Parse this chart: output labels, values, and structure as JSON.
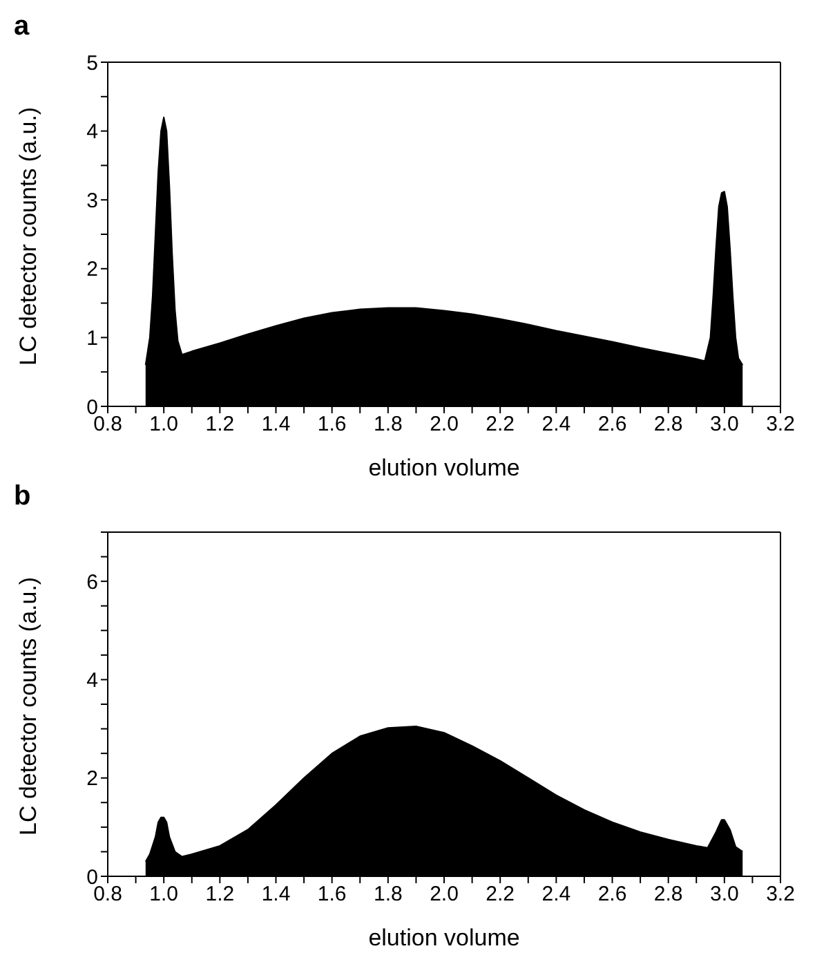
{
  "chart_data": [
    {
      "type": "area",
      "title": "a",
      "xlabel": "elution volume",
      "ylabel": "LC detector counts (a.u.)",
      "xlim": [
        0.8,
        3.2
      ],
      "ylim": [
        0,
        5
      ],
      "xticks": [
        {
          "value": 0.8,
          "label": "0.8"
        },
        {
          "value": 0.9,
          "label": null
        },
        {
          "value": 1,
          "label": "1.0"
        },
        {
          "value": 1.1,
          "label": null
        },
        {
          "value": 1.2,
          "label": "1.2"
        },
        {
          "value": 1.3,
          "label": null
        },
        {
          "value": 1.4,
          "label": "1.4"
        },
        {
          "value": 1.5,
          "label": null
        },
        {
          "value": 1.6,
          "label": "1.6"
        },
        {
          "value": 1.7,
          "label": null
        },
        {
          "value": 1.8,
          "label": "1.8"
        },
        {
          "value": 1.9,
          "label": null
        },
        {
          "value": 2,
          "label": "2.0"
        },
        {
          "value": 2.1,
          "label": null
        },
        {
          "value": 2.2,
          "label": "2.2"
        },
        {
          "value": 2.3,
          "label": null
        },
        {
          "value": 2.4,
          "label": "2.4"
        },
        {
          "value": 2.5,
          "label": null
        },
        {
          "value": 2.6,
          "label": "2.6"
        },
        {
          "value": 2.7,
          "label": null
        },
        {
          "value": 2.8,
          "label": "2.8"
        },
        {
          "value": 2.9,
          "label": null
        },
        {
          "value": 3,
          "label": "3.0"
        },
        {
          "value": 3.1,
          "label": null
        },
        {
          "value": 3.2,
          "label": "3.2"
        }
      ],
      "yticks": [
        0,
        {
          "value": 0.5,
          "label": null
        },
        1,
        {
          "value": 1.5,
          "label": null
        },
        2,
        {
          "value": 2.5,
          "label": null
        },
        3,
        {
          "value": 3.5,
          "label": null
        },
        4,
        {
          "value": 4.5,
          "label": null
        },
        5
      ],
      "grid": false,
      "legend": false,
      "series": [
        {
          "color": "#000000",
          "x": [
            0.935,
            0.95,
            0.96,
            0.97,
            0.98,
            0.99,
            1.0,
            1.01,
            1.02,
            1.03,
            1.04,
            1.05,
            1.065,
            1.1,
            1.2,
            1.3,
            1.4,
            1.5,
            1.6,
            1.7,
            1.8,
            1.9,
            2.0,
            2.1,
            2.2,
            2.3,
            2.4,
            2.5,
            2.6,
            2.7,
            2.8,
            2.9,
            2.93,
            2.95,
            2.96,
            2.97,
            2.98,
            2.99,
            3.0,
            3.01,
            3.02,
            3.03,
            3.04,
            3.05,
            3.065
          ],
          "values": [
            0.6,
            1.0,
            1.6,
            2.5,
            3.4,
            4.0,
            4.2,
            4.0,
            3.2,
            2.2,
            1.4,
            0.95,
            0.75,
            0.8,
            0.92,
            1.05,
            1.17,
            1.28,
            1.36,
            1.41,
            1.43,
            1.43,
            1.39,
            1.34,
            1.27,
            1.19,
            1.1,
            1.02,
            0.94,
            0.85,
            0.77,
            0.69,
            0.66,
            1.0,
            1.6,
            2.3,
            2.9,
            3.1,
            3.12,
            2.9,
            2.3,
            1.6,
            1.0,
            0.7,
            0.6
          ]
        }
      ]
    },
    {
      "type": "area",
      "title": "b",
      "xlabel": "elution volume",
      "ylabel": "LC detector counts (a.u.)",
      "xlim": [
        0.8,
        3.2
      ],
      "ylim": [
        0,
        7
      ],
      "xticks": [
        {
          "value": 0.8,
          "label": "0.8"
        },
        {
          "value": 0.9,
          "label": null
        },
        {
          "value": 1,
          "label": "1.0"
        },
        {
          "value": 1.1,
          "label": null
        },
        {
          "value": 1.2,
          "label": "1.2"
        },
        {
          "value": 1.3,
          "label": null
        },
        {
          "value": 1.4,
          "label": "1.4"
        },
        {
          "value": 1.5,
          "label": null
        },
        {
          "value": 1.6,
          "label": "1.6"
        },
        {
          "value": 1.7,
          "label": null
        },
        {
          "value": 1.8,
          "label": "1.8"
        },
        {
          "value": 1.9,
          "label": null
        },
        {
          "value": 2,
          "label": "2.0"
        },
        {
          "value": 2.1,
          "label": null
        },
        {
          "value": 2.2,
          "label": "2.2"
        },
        {
          "value": 2.3,
          "label": null
        },
        {
          "value": 2.4,
          "label": "2.4"
        },
        {
          "value": 2.5,
          "label": null
        },
        {
          "value": 2.6,
          "label": "2.6"
        },
        {
          "value": 2.7,
          "label": null
        },
        {
          "value": 2.8,
          "label": "2.8"
        },
        {
          "value": 2.9,
          "label": null
        },
        {
          "value": 3,
          "label": "3.0"
        },
        {
          "value": 3.1,
          "label": null
        },
        {
          "value": 3.2,
          "label": "3.2"
        }
      ],
      "yticks": [
        0,
        {
          "value": 0.5,
          "label": null
        },
        {
          "value": 1,
          "label": null
        },
        {
          "value": 1.5,
          "label": null
        },
        2,
        {
          "value": 2.5,
          "label": null
        },
        {
          "value": 3,
          "label": null
        },
        {
          "value": 3.5,
          "label": null
        },
        4,
        {
          "value": 4.5,
          "label": null
        },
        {
          "value": 5,
          "label": null
        },
        {
          "value": 5.5,
          "label": null
        },
        6,
        {
          "value": 6.5,
          "label": null
        },
        {
          "value": 7,
          "label": null
        }
      ],
      "grid": false,
      "legend": false,
      "series": [
        {
          "color": "#000000",
          "x": [
            0.935,
            0.95,
            0.97,
            0.98,
            0.99,
            1.0,
            1.01,
            1.02,
            1.04,
            1.065,
            1.1,
            1.2,
            1.3,
            1.4,
            1.5,
            1.6,
            1.7,
            1.8,
            1.9,
            2.0,
            2.1,
            2.2,
            2.3,
            2.4,
            2.5,
            2.6,
            2.7,
            2.8,
            2.9,
            2.94,
            2.97,
            2.99,
            3.0,
            3.02,
            3.04,
            3.065
          ],
          "values": [
            0.3,
            0.45,
            0.8,
            1.1,
            1.2,
            1.2,
            1.1,
            0.8,
            0.5,
            0.4,
            0.45,
            0.62,
            0.95,
            1.45,
            2.0,
            2.5,
            2.85,
            3.02,
            3.05,
            2.92,
            2.65,
            2.35,
            2.0,
            1.65,
            1.35,
            1.1,
            0.9,
            0.75,
            0.62,
            0.58,
            0.9,
            1.15,
            1.15,
            0.95,
            0.6,
            0.5
          ]
        }
      ]
    }
  ]
}
